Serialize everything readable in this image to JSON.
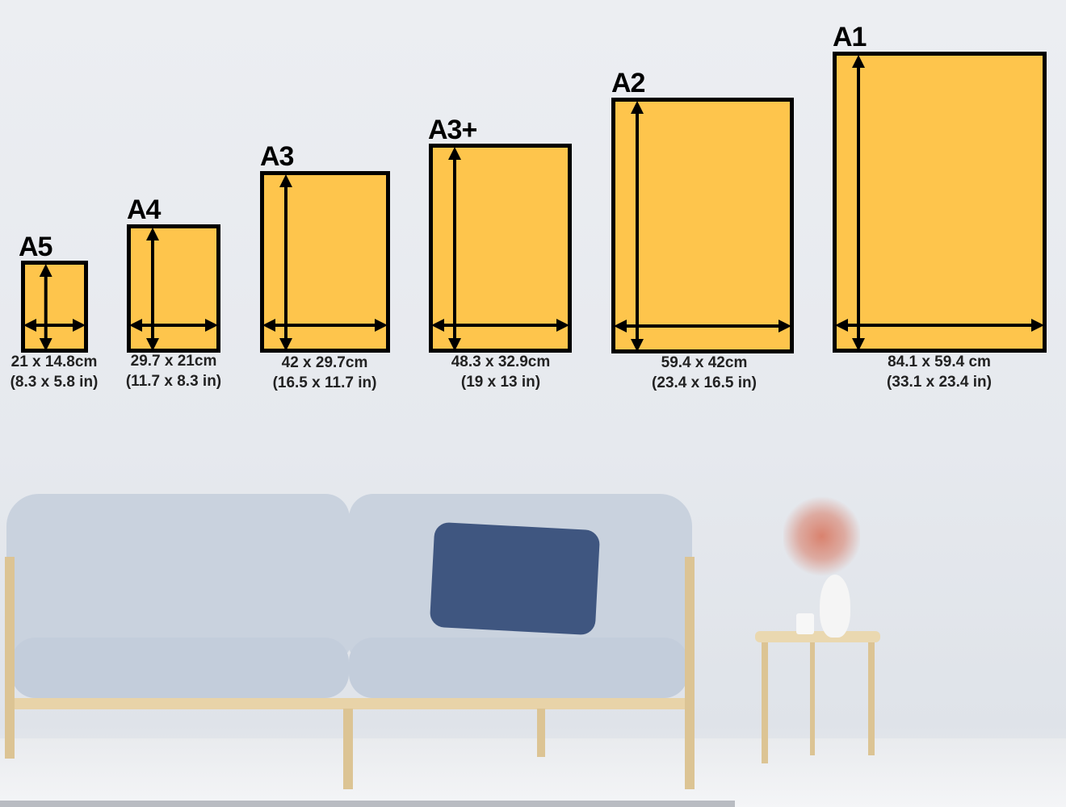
{
  "colors": {
    "paper_fill": "#fec54c",
    "frame_border": "#000000",
    "wall": "#e8ebef",
    "sofa": "#c6d0dd",
    "pillow": "#3f5680",
    "wood": "#e8d3a8"
  },
  "sizes": [
    {
      "name": "A5",
      "cm": "21 x 14.8cm",
      "in": "(8.3 x 5.8 in)"
    },
    {
      "name": "A4",
      "cm": "29.7 x 21cm",
      "in": "(11.7 x 8.3 in)"
    },
    {
      "name": "A3",
      "cm": "42 x 29.7cm",
      "in": "(16.5 x 11.7 in)"
    },
    {
      "name": "A3+",
      "cm": "48.3 x 32.9cm",
      "in": "(19 x 13 in)"
    },
    {
      "name": "A2",
      "cm": "59.4 x 42cm",
      "in": "(23.4 x 16.5 in)"
    },
    {
      "name": "A1",
      "cm": "84.1 x 59.4 cm",
      "in": "(33.1 x 23.4 in)"
    }
  ]
}
